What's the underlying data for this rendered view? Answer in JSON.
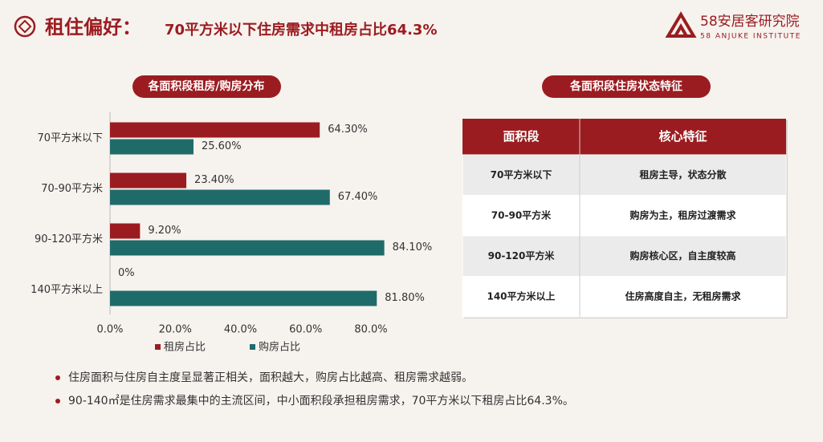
{
  "header": {
    "title": "租住偏好：",
    "subtitle": "70平方米以下住房需求中租房占比64.3%",
    "logo_name": "58安居客研究院",
    "logo_en": "58 ANJUKE INSTITUTE"
  },
  "chart_data": {
    "type": "bar",
    "orientation": "horizontal",
    "title": "各面积段租房/购房分布",
    "categories": [
      "70平方米以下",
      "70-90平方米",
      "90-120平方米",
      "140平方米以上"
    ],
    "series": [
      {
        "name": "租房占比",
        "color": "#9b1c20",
        "values": [
          64.3,
          23.4,
          9.2,
          0
        ],
        "value_labels": [
          "64.30%",
          "23.40%",
          "9.20%",
          "0%"
        ]
      },
      {
        "name": "购房占比",
        "color": "#1f6b6a",
        "values": [
          25.6,
          67.4,
          84.1,
          81.8
        ],
        "value_labels": [
          "25.60%",
          "67.40%",
          "84.10%",
          "81.80%"
        ]
      }
    ],
    "xlim": [
      0,
      90
    ],
    "xticks": [
      {
        "value": 0,
        "label": "0.0%"
      },
      {
        "value": 20,
        "label": "20.0%"
      },
      {
        "value": 40,
        "label": "40.0%"
      },
      {
        "value": 60,
        "label": "60.0%"
      },
      {
        "value": 80,
        "label": "80.0%"
      }
    ],
    "legend": "bottom"
  },
  "table": {
    "title": "各面积段住房状态特征",
    "header": [
      "面积段",
      "核心特征"
    ],
    "rows": [
      [
        "70平方米以下",
        "租房主导，状态分散"
      ],
      [
        "70-90平方米",
        "购房为主，租房过渡需求"
      ],
      [
        "90-120平方米",
        "购房核心区，自主度较高"
      ],
      [
        "140平方米以上",
        "住房高度自主，无租房需求"
      ]
    ]
  },
  "bullets": [
    "住房面积与住房自主度呈显著正相关，面积越大，购房占比越高、租房需求越弱。",
    "90-140㎡是住房需求最集中的主流区间，中小面积段承担租房需求，70平方米以下租房占比64.3%。"
  ]
}
